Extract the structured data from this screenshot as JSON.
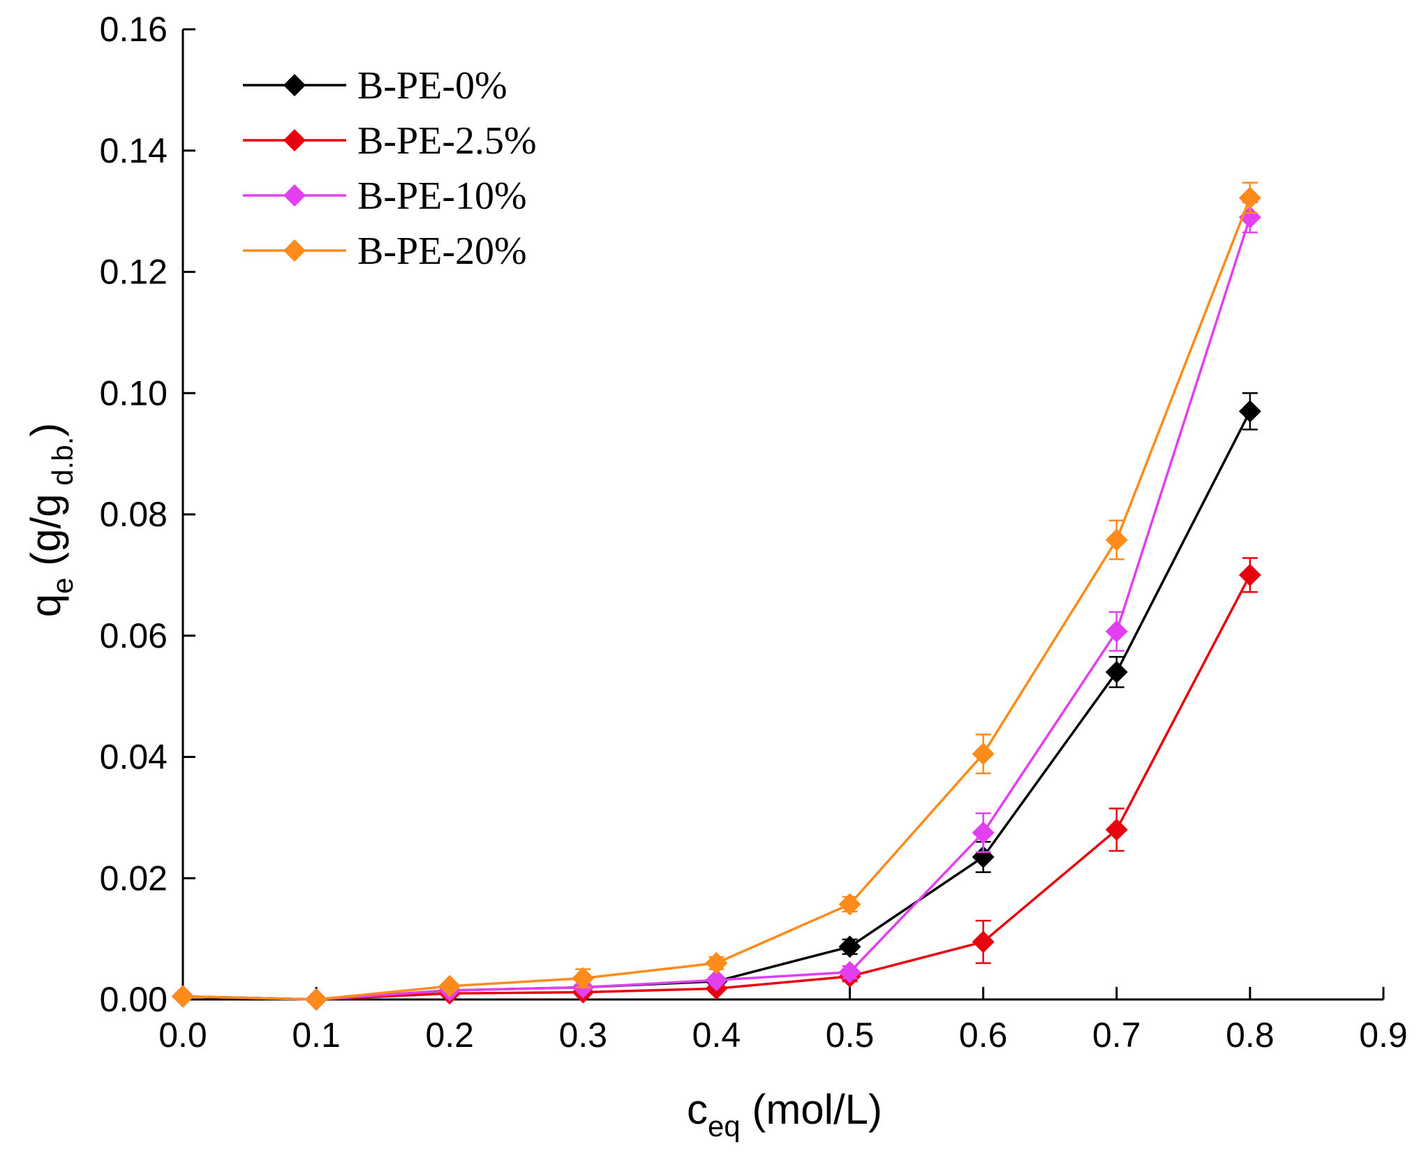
{
  "chart_data": {
    "type": "line",
    "title": "",
    "xlabel": {
      "main": "c",
      "sub": "eq",
      "unit": " (mol/L)"
    },
    "ylabel": {
      "main": "q",
      "sub": "e",
      "unit_open": " (g/g",
      "unit_sub": " d.b.",
      "unit_close": ")"
    },
    "xlim": [
      0,
      0.9
    ],
    "ylim": [
      0,
      0.16
    ],
    "xticks": [
      0,
      0.1,
      0.2,
      0.3,
      0.4,
      0.5,
      0.6,
      0.7,
      0.8,
      0.9
    ],
    "xtick_labels": [
      "0.0",
      "0.1",
      "0.2",
      "0.3",
      "0.4",
      "0.5",
      "0.6",
      "0.7",
      "0.8",
      "0.9"
    ],
    "yticks": [
      0,
      0.02,
      0.04,
      0.06,
      0.08,
      0.1,
      0.12,
      0.14,
      0.16
    ],
    "ytick_labels": [
      "0.00",
      "0.02",
      "0.04",
      "0.06",
      "0.08",
      "0.10",
      "0.12",
      "0.14",
      "0.16"
    ],
    "grid": false,
    "legend_position": "top-left",
    "x": [
      0,
      0.1,
      0.2,
      0.3,
      0.4,
      0.5,
      0.6,
      0.7,
      0.8
    ],
    "series": [
      {
        "name": "B-PE-0%",
        "color": "#000000",
        "values": [
          0.0005,
          0.0,
          0.0015,
          0.002,
          0.003,
          0.0087,
          0.0235,
          0.054,
          0.097
        ],
        "errors": [
          0,
          0,
          0.0003,
          0.0004,
          0.0005,
          0.0012,
          0.0025,
          0.0025,
          0.003
        ]
      },
      {
        "name": "B-PE-2.5%",
        "color": "#e8000e",
        "values": [
          0.0005,
          0.0,
          0.001,
          0.0012,
          0.0018,
          0.0038,
          0.0095,
          0.028,
          0.07
        ],
        "errors": [
          0,
          0,
          0.0003,
          0.0003,
          0.0004,
          0.0008,
          0.0035,
          0.0035,
          0.0028
        ]
      },
      {
        "name": "B-PE-10%",
        "color": "#e23ff0",
        "values": [
          0.0005,
          0.0,
          0.0015,
          0.002,
          0.0032,
          0.0045,
          0.0275,
          0.0607,
          0.129
        ],
        "errors": [
          0,
          0,
          0.0003,
          0.0004,
          0.0005,
          0.001,
          0.0032,
          0.0032,
          0.0025
        ]
      },
      {
        "name": "B-PE-20%",
        "color": "#ff8b1a",
        "values": [
          0.0005,
          0.0,
          0.0022,
          0.0035,
          0.006,
          0.0157,
          0.0405,
          0.0758,
          0.1322
        ],
        "errors": [
          0,
          0,
          0.0004,
          0.0015,
          0.001,
          0.0012,
          0.0032,
          0.0032,
          0.0025
        ]
      }
    ]
  }
}
